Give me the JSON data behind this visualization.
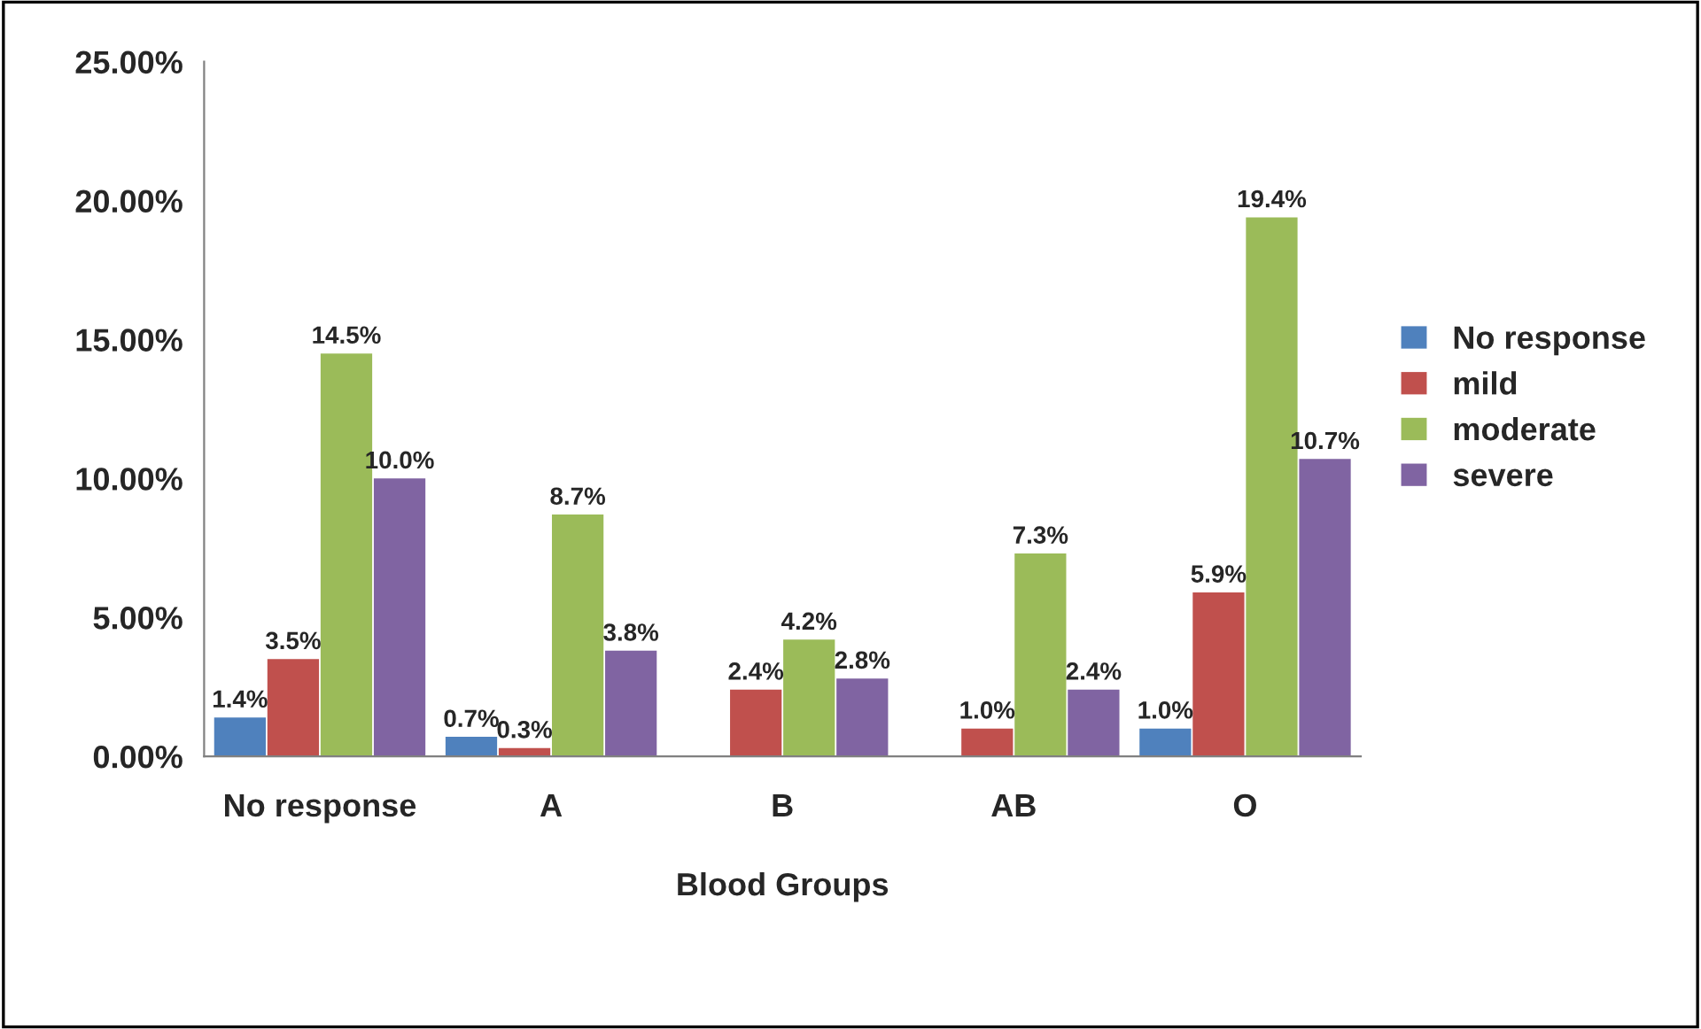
{
  "chart_data": {
    "type": "bar",
    "xlabel": "Blood Groups",
    "categories": [
      "No response",
      "A",
      "B",
      "AB",
      "O"
    ],
    "series": [
      {
        "name": "No response",
        "color": "#4f81bd",
        "values": [
          1.4,
          0.7,
          null,
          null,
          1.0
        ],
        "value_labels": [
          "1.4%",
          "0.7%",
          null,
          null,
          "1.0%"
        ]
      },
      {
        "name": "mild",
        "color": "#c0504d",
        "values": [
          3.5,
          0.3,
          2.4,
          1.0,
          5.9
        ],
        "value_labels": [
          "3.5%",
          "0.3%",
          "2.4%",
          "1.0%",
          "5.9%"
        ]
      },
      {
        "name": "moderate",
        "color": "#9bbb59",
        "values": [
          14.5,
          8.7,
          4.2,
          7.3,
          19.4
        ],
        "value_labels": [
          "14.5%",
          "8.7%",
          "4.2%",
          "7.3%",
          "19.4%"
        ]
      },
      {
        "name": "severe",
        "color": "#8064a2",
        "values": [
          10.0,
          3.8,
          2.8,
          2.4,
          10.7
        ],
        "value_labels": [
          "10.0%",
          "3.8%",
          "2.8%",
          "2.4%",
          "10.7%"
        ]
      }
    ],
    "ylim": [
      0,
      25
    ],
    "yticks": [
      {
        "value": 0,
        "label": "0.00%"
      },
      {
        "value": 5,
        "label": "5.00%"
      },
      {
        "value": 10,
        "label": "10.00%"
      },
      {
        "value": 15,
        "label": "15.00%"
      },
      {
        "value": 20,
        "label": "20.00%"
      },
      {
        "value": 25,
        "label": "25.00%"
      }
    ],
    "grid": false,
    "legend": "right"
  }
}
